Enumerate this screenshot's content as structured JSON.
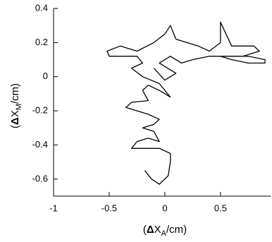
{
  "chart_data": {
    "type": "line",
    "xlabel": [
      "(",
      "Δ",
      "X",
      "A",
      "/cm)"
    ],
    "ylabel": [
      "(",
      "Δ",
      "X",
      "M",
      "/cm)"
    ],
    "xlim": [
      -1,
      0.95
    ],
    "ylim": [
      -0.7,
      0.4
    ],
    "xticks": [
      -1,
      -0.5,
      0,
      0.5
    ],
    "yticks": [
      0.4,
      0.2,
      0,
      -0.2,
      -0.4,
      -0.6
    ],
    "series": [
      {
        "color": "#000000",
        "x": [
          -0.18,
          -0.12,
          -0.05,
          0.03,
          0.05,
          0.05,
          -0.05,
          -0.15,
          -0.3,
          -0.25,
          -0.15,
          -0.05,
          -0.1,
          -0.2,
          -0.1,
          -0.05,
          -0.15,
          -0.25,
          -0.35,
          -0.3,
          -0.15,
          -0.2,
          -0.15,
          -0.05,
          0.05,
          -0.05,
          -0.2,
          -0.3,
          -0.2,
          -0.25,
          -0.5,
          -0.52,
          -0.4,
          -0.25,
          -0.1,
          0,
          0.05,
          0.1,
          0.2,
          0.3,
          0.4,
          0.5,
          0.5,
          0.55,
          0.6,
          0.8,
          0.85,
          0.7,
          0.5,
          0.6,
          0.75,
          0.9,
          0.9,
          0.75,
          0.4,
          0.25,
          0.15,
          0.05,
          -0.05,
          0.05,
          0.1,
          0,
          -0.1
        ],
        "values": [
          -0.55,
          -0.6,
          -0.63,
          -0.58,
          -0.5,
          -0.45,
          -0.42,
          -0.42,
          -0.42,
          -0.38,
          -0.36,
          -0.38,
          -0.32,
          -0.3,
          -0.28,
          -0.25,
          -0.22,
          -0.2,
          -0.18,
          -0.15,
          -0.14,
          -0.08,
          -0.05,
          -0.08,
          -0.12,
          -0.04,
          0,
          0.05,
          0.08,
          0.12,
          0.12,
          0.15,
          0.18,
          0.15,
          0.2,
          0.25,
          0.3,
          0.22,
          0.2,
          0.18,
          0.15,
          0.2,
          0.32,
          0.25,
          0.18,
          0.18,
          0.15,
          0.12,
          0.12,
          0.1,
          0.08,
          0.08,
          0.1,
          0.12,
          0.12,
          0.1,
          0.08,
          0.12,
          0.08,
          0.04,
          0.02,
          -0.02,
          0.05
        ]
      }
    ]
  }
}
